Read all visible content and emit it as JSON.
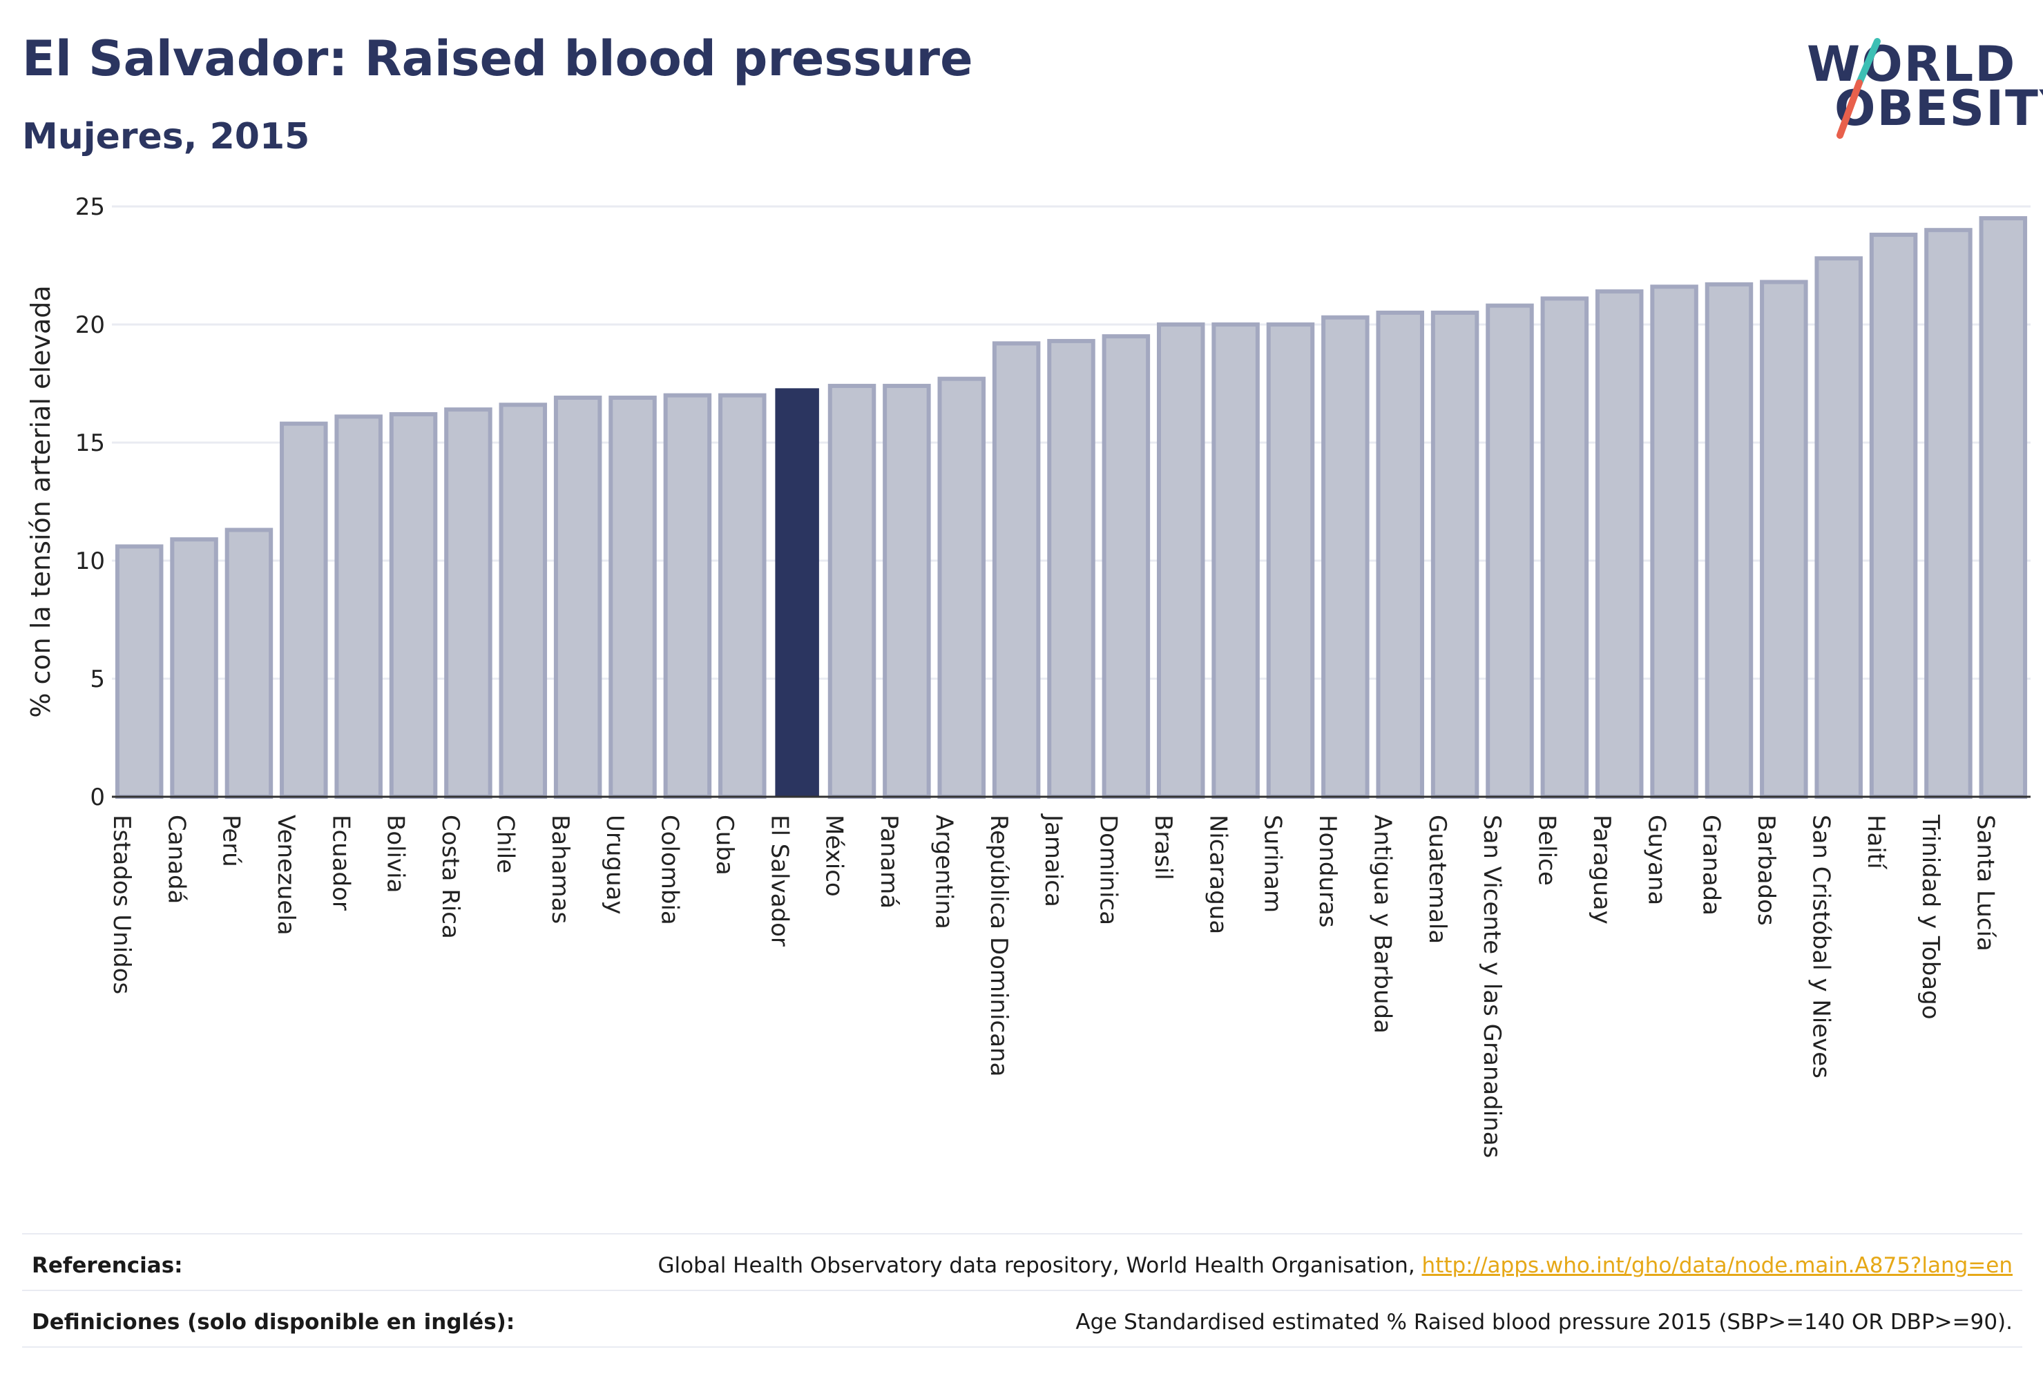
{
  "header": {
    "title": "El Salvador: Raised blood pressure",
    "subtitle": "Mujeres, 2015"
  },
  "logo": {
    "line1": "WORLD",
    "line2": "OBESITY",
    "icon": "world-obesity-slash-logo",
    "colors": {
      "text": "#2b3560",
      "slash_top": "#3cbfb4",
      "slash_bottom": "#e8604c"
    }
  },
  "colors": {
    "bar": "#bfc3d0",
    "bar_stroke": "#a3a8c0",
    "highlight": "#2b3560",
    "grid": "#e9ebf2",
    "axis": "#333333"
  },
  "chart_data": {
    "type": "bar",
    "ylabel": "% con la tensión arterial elevada",
    "xlabel": "",
    "ylim": [
      0,
      25
    ],
    "yticks": [
      0,
      5,
      10,
      15,
      20,
      25
    ],
    "grid": true,
    "highlight": "El Salvador",
    "categories": [
      "Estados Unidos",
      "Canadá",
      "Perú",
      "Venezuela",
      "Ecuador",
      "Bolivia",
      "Costa Rica",
      "Chile",
      "Bahamas",
      "Uruguay",
      "Colombia",
      "Cuba",
      "El Salvador",
      "México",
      "Panamá",
      "Argentina",
      "República Dominicana",
      "Jamaica",
      "Dominica",
      "Brasil",
      "Nicaragua",
      "Surinam",
      "Honduras",
      "Antigua y Barbuda",
      "Guatemala",
      "San Vicente y las Granadinas",
      "Belice",
      "Paraguay",
      "Guyana",
      "Granada",
      "Barbados",
      "San Cristóbal y Nieves",
      "Haití",
      "Trinidad y Tobago",
      "Santa Lucía"
    ],
    "values": [
      10.6,
      10.9,
      11.3,
      15.8,
      16.1,
      16.2,
      16.4,
      16.6,
      16.9,
      16.9,
      17.0,
      17.0,
      17.3,
      17.4,
      17.4,
      17.7,
      19.2,
      19.3,
      19.5,
      20.0,
      20.0,
      20.0,
      20.3,
      20.5,
      20.5,
      20.8,
      21.1,
      21.4,
      21.6,
      21.7,
      21.8,
      22.8,
      23.8,
      24.0,
      24.5
    ]
  },
  "footer": {
    "references_label": "Referencias:",
    "references_text": "Global Health Observatory data repository, World Health Organisation, ",
    "references_link": "http://apps.who.int/gho/data/node.main.A875?lang=en",
    "definitions_label": "Definiciones (solo disponible en inglés):",
    "definitions_text": "Age Standardised estimated % Raised blood pressure 2015 (SBP>=140 OR DBP>=90)."
  }
}
